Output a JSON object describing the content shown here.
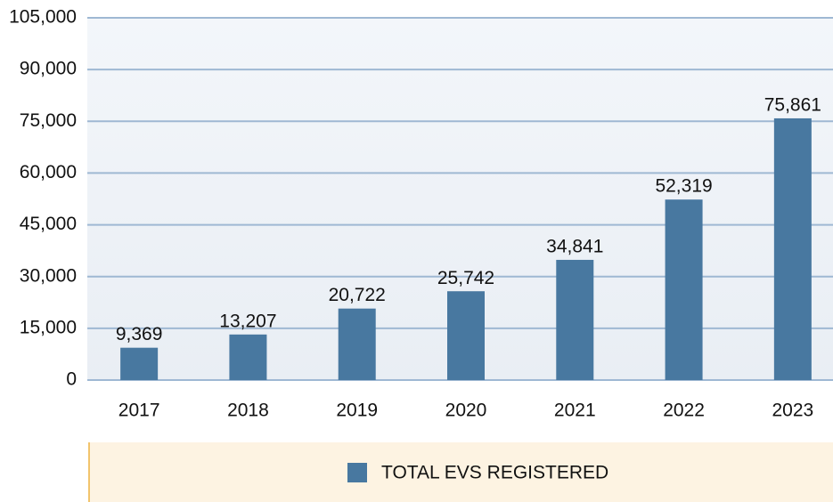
{
  "chart_data": {
    "type": "bar",
    "categories": [
      "2017",
      "2018",
      "2019",
      "2020",
      "2021",
      "2022",
      "2023"
    ],
    "series": [
      {
        "name": "TOTAL EVS REGISTERED",
        "color": "#4878a0",
        "values": [
          9369,
          13207,
          20722,
          25742,
          34841,
          52319,
          75861
        ],
        "value_labels": [
          "9,369",
          "13,207",
          "20,722",
          "25,742",
          "34,841",
          "52,319",
          "75,861"
        ]
      }
    ],
    "ylim": [
      0,
      105000
    ],
    "yticks": [
      0,
      {
        "value": 15000,
        "label": "15,000"
      },
      {
        "value": 30000,
        "label": "30,000"
      },
      {
        "value": 45000,
        "label": "45,000"
      },
      {
        "value": 60000,
        "label": "60,000"
      },
      {
        "value": 75000,
        "label": "75,000"
      },
      {
        "value": 90000,
        "label": "90,000"
      },
      {
        "value": 105000,
        "label": "105,000"
      }
    ],
    "grid": true,
    "legend": "bottom"
  }
}
